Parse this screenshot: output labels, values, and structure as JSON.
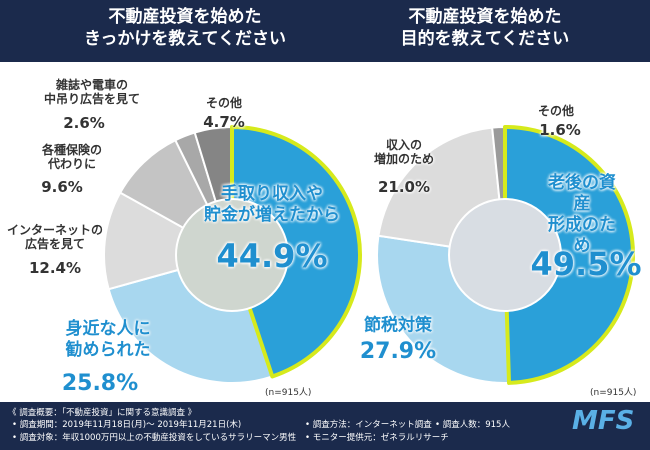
{
  "chart_data": [
    {
      "type": "pie",
      "title": "不動産投資を始めた\nきっかけを教えてください",
      "annotation": "(n=915人)",
      "categories": [
        "手取り収入や\n貯金が増えたから",
        "身近な人に\n勧められた",
        "インターネットの\n広告を見て",
        "各種保険の\n代わりに",
        "雑誌や電車の\n中吊り広告を見て",
        "その他"
      ],
      "values": [
        44.9,
        25.8,
        12.4,
        9.6,
        2.6,
        4.7
      ],
      "value_labels": [
        "44.9%",
        "25.8%",
        "12.4%",
        "9.6%",
        "2.6%",
        "4.7%"
      ],
      "colors": [
        "#2aa0d9",
        "#a8d7ef",
        "#dcdcdc",
        "#c4c4c4",
        "#a8a8a8",
        "#858585"
      ],
      "highlight_color": "#d6ea1c"
    },
    {
      "type": "pie",
      "title": "不動産投資を始めた\n目的を教えてください",
      "annotation": "(n=915人)",
      "categories": [
        "老後の資産\n形成のため",
        "節税対策",
        "収入の\n増加のため",
        "その他"
      ],
      "values": [
        49.5,
        27.9,
        21,
        1.6
      ],
      "value_labels": [
        "49.5%",
        "27.9%",
        "21.0%",
        "1.6%"
      ],
      "colors": [
        "#2aa0d9",
        "#a8d7ef",
        "#dcdcdc",
        "#9a9a9a"
      ],
      "highlight_color": "#d6ea1c"
    }
  ],
  "footer": {
    "heading": "《 調査概要：「不動産投資」に関する意識調査 》",
    "items": [
      "• 調査期間：2019年11月18日(月)～ 2019年11月21日(木)",
      "• 調査方法：インターネット調査",
      "• 調査人数：915人",
      "• 調査対象：年収1000万円以上の不動産投資をしているサラリーマン男性",
      "• モニター提供元：ゼネラルリサーチ"
    ],
    "logo": "MFS"
  }
}
